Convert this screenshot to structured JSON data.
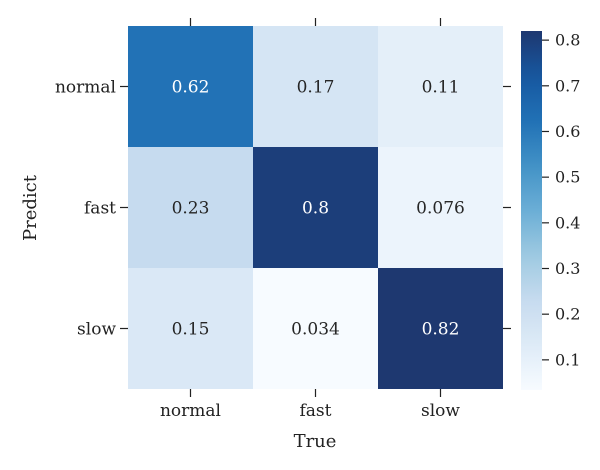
{
  "chart_data": {
    "type": "heatmap",
    "xlabel": "True",
    "ylabel": "Predict",
    "x_categories": [
      "normal",
      "fast",
      "slow"
    ],
    "y_categories": [
      "normal",
      "fast",
      "slow"
    ],
    "values": [
      [
        0.62,
        0.17,
        0.11
      ],
      [
        0.23,
        0.8,
        0.076
      ],
      [
        0.15,
        0.034,
        0.82
      ]
    ],
    "cell_labels": [
      [
        "0.62",
        "0.17",
        "0.11"
      ],
      [
        "0.23",
        "0.8",
        "0.076"
      ],
      [
        "0.15",
        "0.034",
        "0.82"
      ]
    ],
    "colorbar": {
      "min": 0.034,
      "max": 0.82,
      "ticks": [
        0.1,
        0.2,
        0.3,
        0.4,
        0.5,
        0.6,
        0.7,
        0.8
      ],
      "tick_labels": [
        "0.1",
        "0.2",
        "0.3",
        "0.4",
        "0.5",
        "0.6",
        "0.7",
        "0.8"
      ]
    },
    "colormap": "Blues",
    "light_text_color": "#ffffff",
    "dark_text_color": "#262626"
  }
}
